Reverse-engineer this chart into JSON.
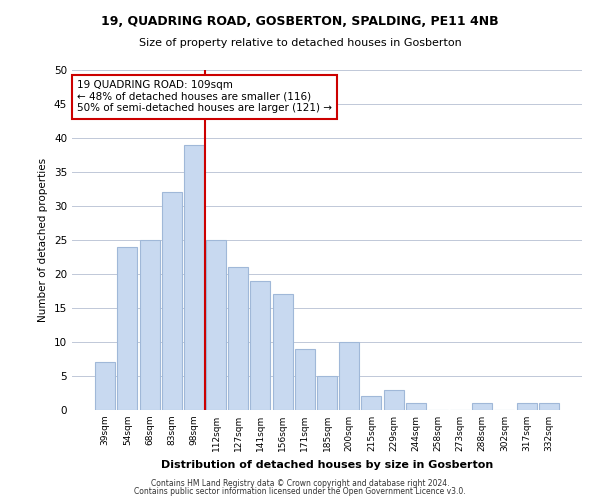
{
  "title": "19, QUADRING ROAD, GOSBERTON, SPALDING, PE11 4NB",
  "subtitle": "Size of property relative to detached houses in Gosberton",
  "xlabel": "Distribution of detached houses by size in Gosberton",
  "ylabel": "Number of detached properties",
  "footer_lines": [
    "Contains HM Land Registry data © Crown copyright and database right 2024.",
    "Contains public sector information licensed under the Open Government Licence v3.0."
  ],
  "categories": [
    "39sqm",
    "54sqm",
    "68sqm",
    "83sqm",
    "98sqm",
    "112sqm",
    "127sqm",
    "141sqm",
    "156sqm",
    "171sqm",
    "185sqm",
    "200sqm",
    "215sqm",
    "229sqm",
    "244sqm",
    "258sqm",
    "273sqm",
    "288sqm",
    "302sqm",
    "317sqm",
    "332sqm"
  ],
  "values": [
    7,
    24,
    25,
    32,
    39,
    25,
    21,
    19,
    17,
    9,
    5,
    10,
    2,
    3,
    1,
    0,
    0,
    1,
    0,
    1,
    1
  ],
  "bar_color": "#c8d9f0",
  "bar_edge_color": "#a0b8d8",
  "vline_x_index": 5,
  "vline_color": "#cc0000",
  "annotation_text": "19 QUADRING ROAD: 109sqm\n← 48% of detached houses are smaller (116)\n50% of semi-detached houses are larger (121) →",
  "annotation_box_color": "#ffffff",
  "annotation_box_edge_color": "#cc0000",
  "ylim": [
    0,
    50
  ],
  "yticks": [
    0,
    5,
    10,
    15,
    20,
    25,
    30,
    35,
    40,
    45,
    50
  ],
  "background_color": "#ffffff",
  "grid_color": "#c0c8d8"
}
